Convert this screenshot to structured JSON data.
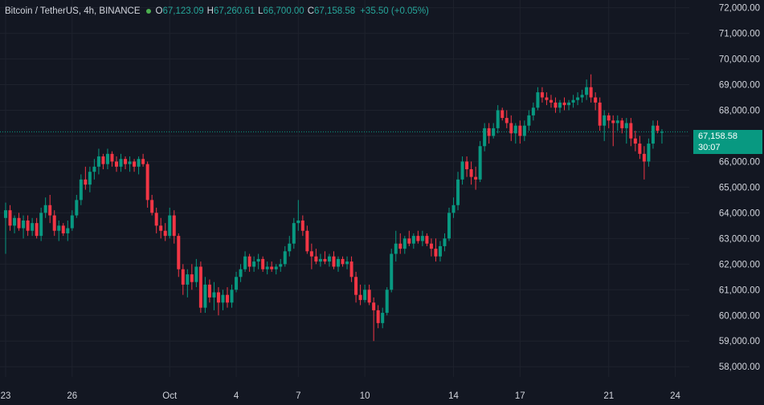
{
  "legend": {
    "symbol": "Bitcoin / TetherUS, 4h, BINANCE",
    "open_label": "O",
    "open": "67,123.09",
    "high_label": "H",
    "high": "67,260.61",
    "low_label": "L",
    "low": "66,700.00",
    "close_label": "C",
    "close": "67,158.58",
    "change": "+35.50 (+0.05%)"
  },
  "price_label": {
    "price": "67,158.58",
    "countdown": "30:07"
  },
  "colors": {
    "up": "#089981",
    "down": "#f23645",
    "background": "#131722",
    "grid": "#1e222d",
    "text": "#d1d4dc"
  },
  "chart_data": {
    "type": "candlestick",
    "symbol": "BTC/USDT",
    "interval": "4h",
    "ylim": [
      57600,
      72300
    ],
    "y_ticks": [
      "72,000.00",
      "71,000.00",
      "70,000.00",
      "69,000.00",
      "68,000.00",
      "67,000.00",
      "66,000.00",
      "65,000.00",
      "64,000.00",
      "63,000.00",
      "62,000.00",
      "61,000.00",
      "60,000.00",
      "59,000.00",
      "58,000.00"
    ],
    "x_ticks": [
      {
        "label": "23",
        "index": 0
      },
      {
        "label": "26",
        "index": 15
      },
      {
        "label": "Oct",
        "index": 37
      },
      {
        "label": "4",
        "index": 52
      },
      {
        "label": "7",
        "index": 66
      },
      {
        "label": "10",
        "index": 81
      },
      {
        "label": "14",
        "index": 101
      },
      {
        "label": "17",
        "index": 116
      },
      {
        "label": "21",
        "index": 136
      },
      {
        "label": "24",
        "index": 151
      }
    ],
    "last_price": 67158.58,
    "candles": [
      [
        63800,
        64400,
        62400,
        64100
      ],
      [
        64100,
        64300,
        63300,
        63500
      ],
      [
        63500,
        63900,
        63200,
        63800
      ],
      [
        63800,
        64000,
        63300,
        63400
      ],
      [
        63400,
        63900,
        63000,
        63700
      ],
      [
        63700,
        63900,
        63100,
        63300
      ],
      [
        63300,
        63800,
        63100,
        63600
      ],
      [
        63600,
        63800,
        63000,
        63100
      ],
      [
        63100,
        64200,
        62900,
        64000
      ],
      [
        64000,
        64600,
        63800,
        64300
      ],
      [
        64300,
        64700,
        63600,
        63900
      ],
      [
        63900,
        64100,
        63100,
        63300
      ],
      [
        63300,
        63700,
        62900,
        63500
      ],
      [
        63500,
        63600,
        63100,
        63200
      ],
      [
        63200,
        63700,
        62900,
        63400
      ],
      [
        63400,
        64100,
        63300,
        63900
      ],
      [
        63900,
        64700,
        63800,
        64500
      ],
      [
        64500,
        65500,
        64300,
        65300
      ],
      [
        65300,
        65800,
        64900,
        65100
      ],
      [
        65100,
        65800,
        64800,
        65600
      ],
      [
        65600,
        66100,
        65300,
        65800
      ],
      [
        65800,
        66500,
        65500,
        66200
      ],
      [
        66200,
        66300,
        65700,
        65900
      ],
      [
        65900,
        66500,
        65700,
        66300
      ],
      [
        66300,
        66400,
        65800,
        66000
      ],
      [
        66000,
        66200,
        65600,
        65800
      ],
      [
        65800,
        66300,
        65600,
        66100
      ],
      [
        66100,
        66200,
        65700,
        65900
      ],
      [
        65900,
        66200,
        65600,
        66000
      ],
      [
        66000,
        66100,
        65600,
        65800
      ],
      [
        65800,
        66200,
        65500,
        66100
      ],
      [
        66100,
        66300,
        65800,
        65900
      ],
      [
        65900,
        66000,
        64200,
        64500
      ],
      [
        64500,
        64700,
        63900,
        64000
      ],
      [
        64000,
        64200,
        63200,
        63500
      ],
      [
        63500,
        63800,
        63000,
        63300
      ],
      [
        63300,
        63600,
        62900,
        63100
      ],
      [
        63100,
        64200,
        63000,
        63900
      ],
      [
        63900,
        64100,
        62800,
        63100
      ],
      [
        63100,
        63200,
        61500,
        61800
      ],
      [
        61800,
        62000,
        60800,
        61200
      ],
      [
        61200,
        61800,
        60700,
        61600
      ],
      [
        61600,
        62000,
        61000,
        61300
      ],
      [
        61300,
        62200,
        61100,
        61900
      ],
      [
        61900,
        62100,
        60100,
        60300
      ],
      [
        60300,
        61500,
        60100,
        61200
      ],
      [
        61200,
        61400,
        60500,
        60700
      ],
      [
        60700,
        61300,
        60200,
        60900
      ],
      [
        60900,
        61100,
        60000,
        60500
      ],
      [
        60500,
        61000,
        60200,
        60800
      ],
      [
        60800,
        61100,
        60300,
        60500
      ],
      [
        60500,
        61200,
        60300,
        61000
      ],
      [
        61000,
        61700,
        60900,
        61500
      ],
      [
        61500,
        62000,
        61300,
        61800
      ],
      [
        61800,
        62500,
        61700,
        62300
      ],
      [
        62300,
        62400,
        61700,
        61900
      ],
      [
        61900,
        62300,
        61700,
        62100
      ],
      [
        62100,
        62400,
        61800,
        62200
      ],
      [
        62200,
        62300,
        61700,
        61800
      ],
      [
        61800,
        62100,
        61600,
        61900
      ],
      [
        61900,
        62100,
        61700,
        61800
      ],
      [
        61800,
        62000,
        61600,
        61900
      ],
      [
        61900,
        62200,
        61700,
        62000
      ],
      [
        62000,
        62700,
        61900,
        62500
      ],
      [
        62500,
        63100,
        62300,
        62800
      ],
      [
        62800,
        63800,
        62600,
        63600
      ],
      [
        63600,
        64500,
        63300,
        63700
      ],
      [
        63700,
        63900,
        63100,
        63300
      ],
      [
        63300,
        63500,
        62400,
        62500
      ],
      [
        62500,
        62800,
        61800,
        62300
      ],
      [
        62300,
        62600,
        62000,
        62100
      ],
      [
        62100,
        62400,
        61900,
        62200
      ],
      [
        62200,
        62500,
        62000,
        62100
      ],
      [
        62100,
        62400,
        61900,
        62300
      ],
      [
        62300,
        62500,
        61800,
        61900
      ],
      [
        61900,
        62300,
        61700,
        62200
      ],
      [
        62200,
        62300,
        61900,
        62000
      ],
      [
        62000,
        62300,
        61800,
        62100
      ],
      [
        62100,
        62300,
        61300,
        61500
      ],
      [
        61500,
        61700,
        60500,
        60800
      ],
      [
        60800,
        61200,
        60400,
        60600
      ],
      [
        60600,
        61200,
        60500,
        61000
      ],
      [
        61000,
        61200,
        60400,
        60500
      ],
      [
        60500,
        60700,
        59000,
        60200
      ],
      [
        60200,
        60400,
        59500,
        59700
      ],
      [
        59700,
        60300,
        59500,
        60100
      ],
      [
        60100,
        61100,
        60000,
        61000
      ],
      [
        61000,
        62600,
        60900,
        62400
      ],
      [
        62400,
        63300,
        62100,
        62800
      ],
      [
        62800,
        63200,
        62400,
        62600
      ],
      [
        62600,
        63100,
        62400,
        63000
      ],
      [
        63000,
        63300,
        62700,
        62800
      ],
      [
        62800,
        63200,
        62600,
        63100
      ],
      [
        63100,
        63300,
        62800,
        62900
      ],
      [
        62900,
        63300,
        62700,
        63100
      ],
      [
        63100,
        63200,
        62700,
        62800
      ],
      [
        62800,
        63000,
        62300,
        62600
      ],
      [
        62600,
        63000,
        62100,
        62300
      ],
      [
        62300,
        62900,
        62100,
        62700
      ],
      [
        62700,
        63200,
        62500,
        63000
      ],
      [
        63000,
        64200,
        62900,
        64000
      ],
      [
        64000,
        64600,
        63800,
        64300
      ],
      [
        64300,
        65600,
        64100,
        65300
      ],
      [
        65300,
        66200,
        65100,
        66000
      ],
      [
        66000,
        66200,
        65400,
        65700
      ],
      [
        65700,
        66000,
        65100,
        65400
      ],
      [
        65400,
        65800,
        64900,
        65300
      ],
      [
        65300,
        66800,
        65200,
        66600
      ],
      [
        66600,
        67500,
        66400,
        67300
      ],
      [
        67300,
        67500,
        66700,
        67000
      ],
      [
        67000,
        67500,
        66900,
        67300
      ],
      [
        67300,
        68200,
        67100,
        68000
      ],
      [
        68000,
        68100,
        67600,
        67700
      ],
      [
        67700,
        68000,
        67300,
        67500
      ],
      [
        67500,
        67800,
        66800,
        67100
      ],
      [
        67100,
        67500,
        66700,
        67400
      ],
      [
        67400,
        67600,
        66700,
        67000
      ],
      [
        67000,
        67600,
        66800,
        67400
      ],
      [
        67400,
        68000,
        67200,
        67800
      ],
      [
        67800,
        68300,
        67600,
        68100
      ],
      [
        68100,
        68900,
        68000,
        68700
      ],
      [
        68700,
        68900,
        68300,
        68500
      ],
      [
        68500,
        68700,
        68200,
        68400
      ],
      [
        68400,
        68600,
        68100,
        68300
      ],
      [
        68300,
        68500,
        67900,
        68100
      ],
      [
        68100,
        68400,
        67900,
        68300
      ],
      [
        68300,
        68500,
        68000,
        68200
      ],
      [
        68200,
        68400,
        68000,
        68300
      ],
      [
        68300,
        68600,
        68100,
        68400
      ],
      [
        68400,
        68700,
        68200,
        68500
      ],
      [
        68500,
        68800,
        68300,
        68600
      ],
      [
        68600,
        69200,
        68400,
        68900
      ],
      [
        68900,
        69400,
        68300,
        68500
      ],
      [
        68500,
        68700,
        68000,
        68300
      ],
      [
        68300,
        68500,
        67200,
        67400
      ],
      [
        67400,
        68000,
        66800,
        67800
      ],
      [
        67800,
        67900,
        67300,
        67600
      ],
      [
        67600,
        67800,
        66600,
        67500
      ],
      [
        67500,
        67800,
        67200,
        67600
      ],
      [
        67600,
        67700,
        67100,
        67300
      ],
      [
        67300,
        67700,
        66700,
        67500
      ],
      [
        67500,
        67700,
        66600,
        66900
      ],
      [
        66900,
        67200,
        66400,
        66700
      ],
      [
        66700,
        67000,
        66100,
        66300
      ],
      [
        66300,
        66600,
        65300,
        66000
      ],
      [
        66000,
        66900,
        65800,
        66700
      ],
      [
        66700,
        67600,
        66500,
        67400
      ],
      [
        67400,
        67600,
        67100,
        67200
      ],
      [
        67123,
        67260,
        66700,
        67159
      ]
    ]
  }
}
